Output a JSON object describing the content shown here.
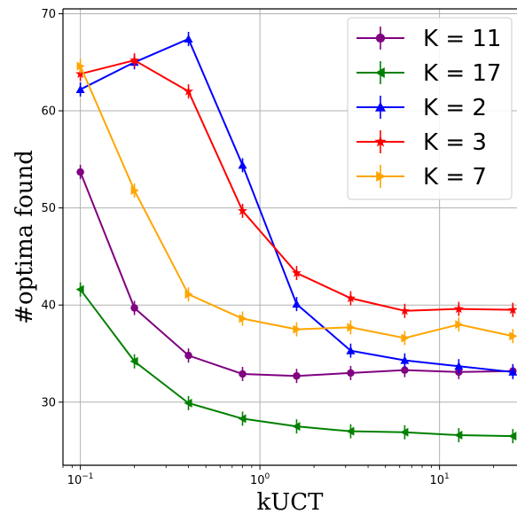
{
  "chart_data": {
    "type": "line",
    "xlabel": "kUCT",
    "ylabel": "#optima found",
    "xscale": "log",
    "xlim": [
      0.08,
      27
    ],
    "ylim": [
      23.5,
      70.5
    ],
    "yticks": [
      30,
      40,
      50,
      60,
      70
    ],
    "xticks": [
      {
        "value": 0.1,
        "base": "10",
        "exp": "−1"
      },
      {
        "value": 1,
        "base": "10",
        "exp": "0"
      },
      {
        "value": 10,
        "base": "10",
        "exp": "1"
      }
    ],
    "grid": true,
    "legend_position": "top-right",
    "x": [
      0.1,
      0.2,
      0.4,
      0.8,
      1.6,
      3.2,
      6.4,
      12.8,
      25.6
    ],
    "series": [
      {
        "name": "K = 11",
        "color": "#800080",
        "marker": "circle",
        "values": [
          53.7,
          39.7,
          34.8,
          32.9,
          32.7,
          33.0,
          33.3,
          33.1,
          33.2
        ]
      },
      {
        "name": "K = 17",
        "color": "#008000",
        "marker": "triangle-left",
        "values": [
          41.6,
          34.2,
          29.9,
          28.3,
          27.5,
          27.0,
          26.9,
          26.6,
          26.5
        ]
      },
      {
        "name": "K = 2",
        "color": "#0000ff",
        "marker": "triangle-up",
        "values": [
          62.2,
          65.0,
          67.4,
          54.4,
          40.1,
          35.3,
          34.3,
          33.7,
          33.1
        ]
      },
      {
        "name": "K = 3",
        "color": "#ff0000",
        "marker": "star",
        "values": [
          63.8,
          65.2,
          62.0,
          49.7,
          43.3,
          40.7,
          39.4,
          39.6,
          39.5
        ]
      },
      {
        "name": "K = 7",
        "color": "#ffa500",
        "marker": "triangle-right",
        "values": [
          64.6,
          51.8,
          41.1,
          38.6,
          37.5,
          37.7,
          36.6,
          38.0,
          36.8
        ]
      }
    ]
  }
}
